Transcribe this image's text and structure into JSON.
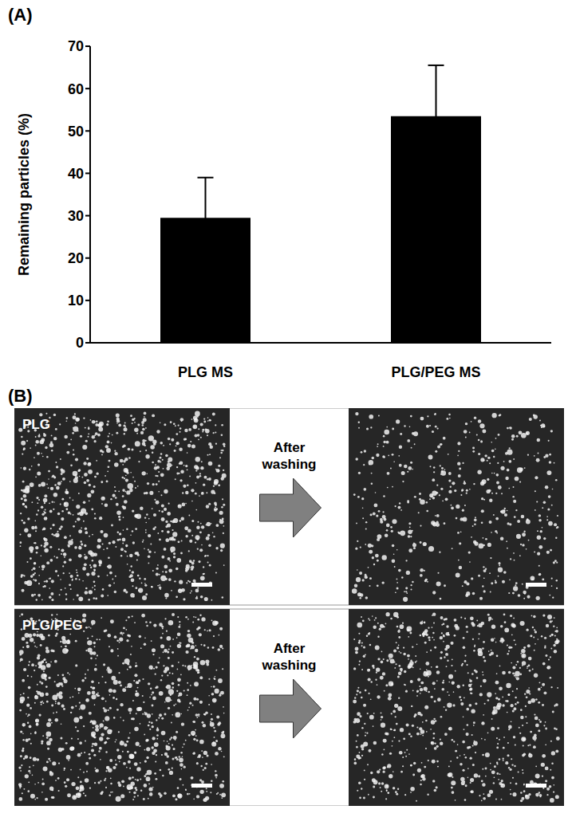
{
  "panel_labels": [
    "(A)",
    "(B)"
  ],
  "chart_data": {
    "type": "bar",
    "y_label": "Remaining particles (%)",
    "categories": [
      "PLG MS",
      "PLG/PEG MS"
    ],
    "values": [
      29.5,
      53.5
    ],
    "error": [
      9.5,
      12
    ],
    "color": "#000000",
    "ylim": [
      0,
      70
    ],
    "yticks": [
      0,
      10,
      20,
      30,
      40,
      50,
      60,
      70
    ],
    "grid": false
  },
  "images": {
    "rows": [
      {
        "label": "PLG",
        "arrow_text": "After washing"
      },
      {
        "label": "PLG/PEG",
        "arrow_text": "After washing"
      }
    ]
  }
}
